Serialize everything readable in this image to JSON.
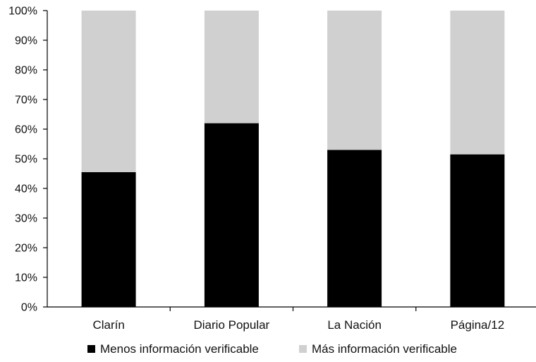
{
  "chart_data": {
    "type": "bar",
    "stacked": true,
    "categories": [
      "Clarín",
      "Diario Popular",
      "La Nación",
      "Página/12"
    ],
    "series": [
      {
        "name": "Menos información verificable",
        "color": "#000000",
        "values": [
          45.5,
          62,
          53,
          51.5
        ]
      },
      {
        "name": "Más información verificable",
        "color": "#d0d0d0",
        "values": [
          54.5,
          38,
          47,
          48.5
        ]
      }
    ],
    "title": "",
    "xlabel": "",
    "ylabel": "",
    "ylim": [
      0,
      100
    ],
    "y_ticks": [
      "0%",
      "10%",
      "20%",
      "30%",
      "40%",
      "50%",
      "60%",
      "70%",
      "80%",
      "90%",
      "100%"
    ],
    "grid": false,
    "legend_position": "bottom"
  }
}
